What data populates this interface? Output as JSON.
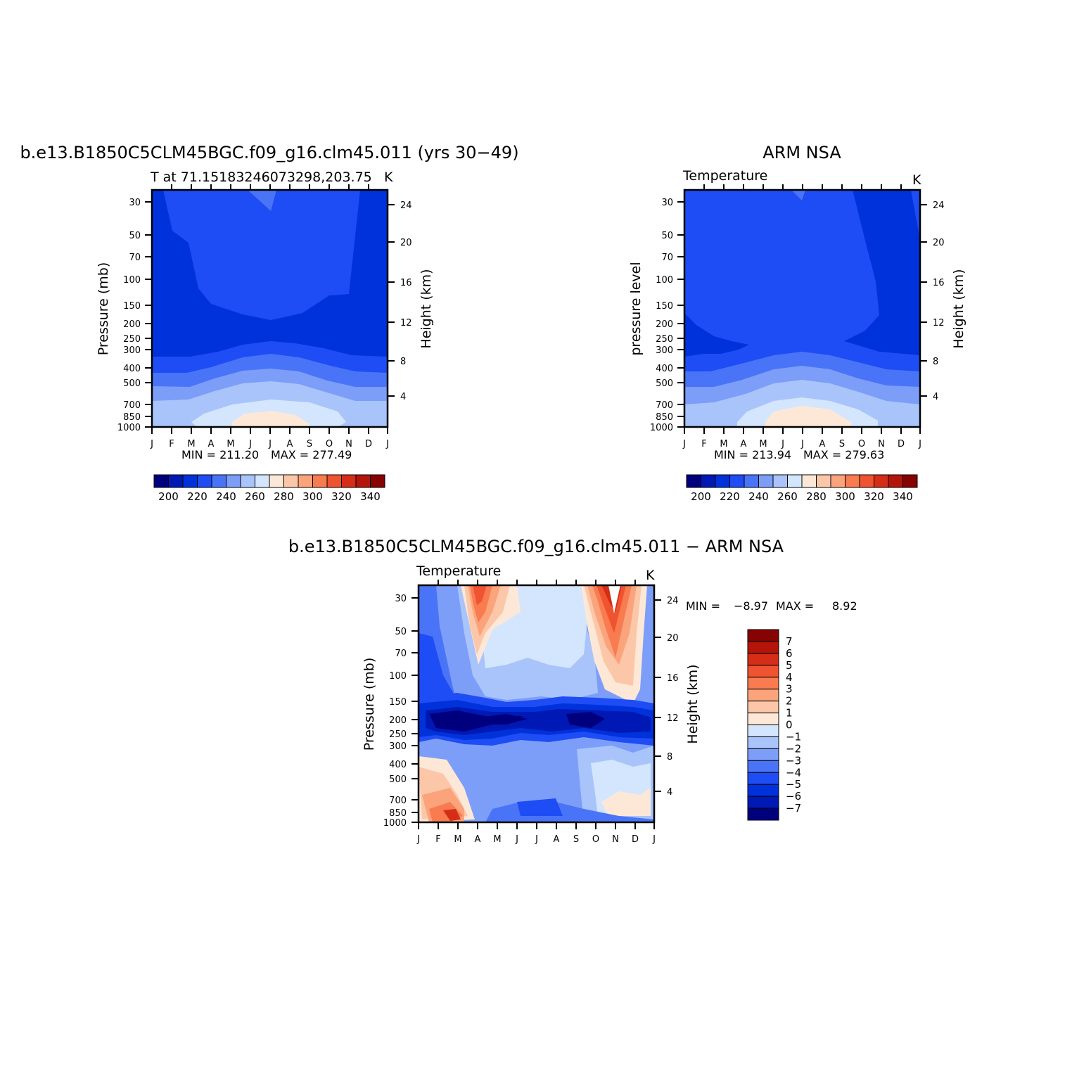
{
  "palette": [
    "#00007f",
    "#0018b4",
    "#0032dc",
    "#1e4cf5",
    "#4a74f7",
    "#7c9ef9",
    "#a9c4fb",
    "#d4e6fd",
    "#fde8d8",
    "#fcc7a8",
    "#fba47c",
    "#f97b50",
    "#f0532f",
    "#d52d16",
    "#b3150a",
    "#870202"
  ],
  "axes": {
    "pressure_ticks": [
      30,
      50,
      70,
      100,
      150,
      200,
      250,
      300,
      400,
      500,
      700,
      850,
      1000
    ],
    "height_ticks": [
      4,
      8,
      12,
      16,
      20,
      24
    ],
    "month_ticks": [
      "J",
      "F",
      "M",
      "A",
      "M",
      "J",
      "J",
      "A",
      "S",
      "O",
      "N",
      "D",
      "J"
    ]
  },
  "chart_data": [
    {
      "type": "heatmap",
      "title": "b.e13.B1850C5CLM45BGC.f09_g16.clm45.011 (yrs 30−49)",
      "subtitle_left": "T at 71.15183246073298,203.75",
      "units": "K",
      "ylabel": "Pressure (mb)",
      "y2label": "Height (km)",
      "min_label": "MIN = 211.20",
      "max_label": "MAX = 277.49",
      "min": 211.2,
      "max": 277.49,
      "colorbar_ticks": [
        "200",
        "220",
        "240",
        "260",
        "280",
        "300",
        "320",
        "340"
      ]
    },
    {
      "type": "heatmap",
      "title": "ARM NSA",
      "subtitle_left": "Temperature",
      "units": "K",
      "ylabel": "pressure level",
      "y2label": "Height (km)",
      "min_label": "MIN = 213.94",
      "max_label": "MAX = 279.63",
      "min": 213.94,
      "max": 279.63,
      "colorbar_ticks": [
        "200",
        "220",
        "240",
        "260",
        "280",
        "300",
        "320",
        "340"
      ]
    },
    {
      "type": "heatmap",
      "title": "b.e13.B1850C5CLM45BGC.f09_g16.clm45.011 − ARM NSA",
      "subtitle_left": "Temperature",
      "units": "K",
      "ylabel": "Pressure (mb)",
      "y2label": "Height (km)",
      "min_label": "MIN =",
      "min_value": "−8.97",
      "max_label": "MAX =",
      "max_value": "8.92",
      "min": -8.97,
      "max": 8.92,
      "colorbar_ticks": [
        "7",
        "6",
        "5",
        "4",
        "3",
        "2",
        "1",
        "0",
        "−1",
        "−2",
        "−3",
        "−4",
        "−5",
        "−6",
        "−7"
      ]
    }
  ]
}
